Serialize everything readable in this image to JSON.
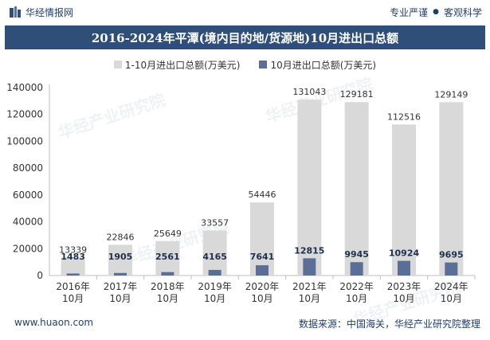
{
  "header": {
    "brand": "华经情报网",
    "slogan_left": "专业严谨",
    "slogan_right": "客观科学"
  },
  "watermark": "华经产业研究院",
  "footer": {
    "site": "www.huaon.com",
    "source": "数据来源：中国海关，华经产业研究院整理"
  },
  "colors": {
    "bar_total": "#d9d9d9",
    "bar_october": "#5b6f96",
    "title_bg": "#2f4f78",
    "brand": "#1f3f6b"
  },
  "chart_data": {
    "type": "bar",
    "title": "2016-2024年平潭(境内目的地/货源地)10月进出口总额",
    "categories": [
      "2016年\n10月",
      "2017年\n10月",
      "2018年\n10月",
      "2019年\n10月",
      "2020年\n10月",
      "2021年\n10月",
      "2022年\n10月",
      "2023年\n10月",
      "2024年\n10月"
    ],
    "series": [
      {
        "name": "1-10月进出口总额(万美元)",
        "values": [
          13339,
          22846,
          25649,
          33557,
          54446,
          131043,
          129181,
          112516,
          129149
        ]
      },
      {
        "name": "10月进出口总额(万美元)",
        "values": [
          1483,
          1905,
          2561,
          4165,
          7641,
          12815,
          9945,
          10924,
          9695
        ]
      }
    ],
    "ylim": [
      0,
      140000
    ],
    "yticks": [
      0,
      20000,
      40000,
      60000,
      80000,
      100000,
      120000,
      140000
    ],
    "xlabel": "",
    "ylabel": ""
  }
}
